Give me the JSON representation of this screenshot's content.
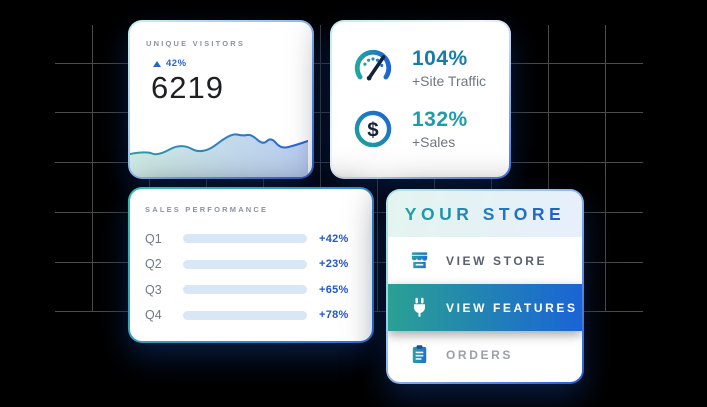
{
  "colors": {
    "accent_teal": "#2aa5a0",
    "accent_blue": "#1f65d8",
    "percent_blue": "#2456c8",
    "muted_gray": "#8b93a1",
    "grid_line": "#4c4c4c"
  },
  "unique_visitors": {
    "title": "UNIQUE VISITORS",
    "delta": "42%",
    "value": "6219"
  },
  "metrics": {
    "items": [
      {
        "icon": "speedometer-icon",
        "value": "104%",
        "label": "+Site Traffic"
      },
      {
        "icon": "dollar-icon",
        "value": "132%",
        "label": "+Sales"
      }
    ]
  },
  "sales_performance": {
    "title": "SALES PERFORMANCE",
    "rows": [
      {
        "label": "Q1",
        "value": "+42%",
        "fill_pct": 47
      },
      {
        "label": "Q2",
        "value": "+23%",
        "fill_pct": 28
      },
      {
        "label": "Q3",
        "value": "+65%",
        "fill_pct": 66
      },
      {
        "label": "Q4",
        "value": "+78%",
        "fill_pct": 82
      }
    ]
  },
  "your_store": {
    "title": "YOUR STORE",
    "menu": [
      {
        "icon": "storefront-icon",
        "label": "VIEW STORE",
        "active": false
      },
      {
        "icon": "plug-icon",
        "label": "VIEW FEATURES",
        "active": true
      },
      {
        "icon": "clipboard-icon",
        "label": "ORDERS",
        "active": false
      }
    ]
  },
  "chart_data": [
    {
      "type": "area",
      "title": "Unique Visitors sparkline (no axes or labels shown)",
      "x": [
        0,
        9,
        15.7,
        28.7,
        41,
        56.7,
        63.5,
        68,
        74.7,
        79.2,
        84.8,
        93.3,
        100
      ],
      "values": [
        46,
        52,
        42,
        68,
        44,
        88,
        82,
        86,
        64,
        80,
        56,
        64,
        72
      ],
      "ylim": [
        0,
        100
      ],
      "grid": false,
      "legend": false
    },
    {
      "type": "bar",
      "orientation": "horizontal",
      "title": "SALES PERFORMANCE",
      "categories": [
        "Q1",
        "Q2",
        "Q3",
        "Q4"
      ],
      "values": [
        42,
        23,
        65,
        78
      ],
      "labels": [
        "+42%",
        "+23%",
        "+65%",
        "+78%"
      ],
      "track_fill_pct": [
        47,
        28,
        66,
        82
      ]
    }
  ]
}
